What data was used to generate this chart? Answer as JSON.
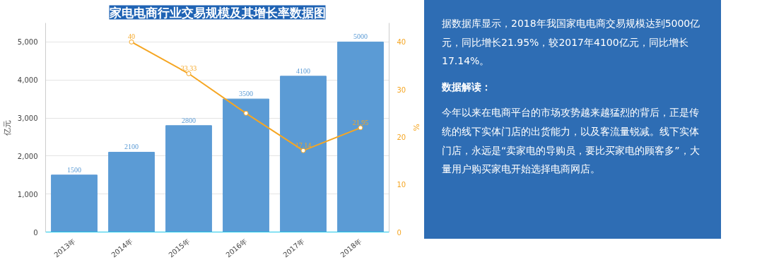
{
  "chart_data": [
    {
      "type": "bar",
      "title": "家电电商行业交易规模及其增长率数据图",
      "ylabel": "亿元",
      "y2label": "%",
      "categories": [
        "2013年",
        "2014年",
        "2015年",
        "2016年",
        "2017年",
        "2018年"
      ],
      "series": [
        {
          "color": "#5b9bd5",
          "values": [
            1500,
            2100,
            2800,
            3500,
            4100,
            5000
          ],
          "data_labels": true
        },
        {
          "type": "line",
          "axis": "y2",
          "color": "#f5a623",
          "values": [
            null,
            40,
            33.33,
            25,
            17.14,
            21.95
          ],
          "value_labels": [
            null,
            "40",
            "33.33",
            null,
            "17.14",
            "21.95"
          ],
          "marker": "circle"
        }
      ],
      "ylim": [
        0,
        5500
      ],
      "yticks": [
        0,
        {
          "value": 1000,
          "label": "1,000"
        },
        {
          "value": 2000,
          "label": "2,000"
        },
        {
          "value": 3000,
          "label": "3,000"
        },
        {
          "value": 4000,
          "label": "4,000"
        },
        {
          "value": 5000,
          "label": "5,000"
        }
      ],
      "y2lim": [
        0,
        44
      ],
      "y2ticks": [
        0,
        10,
        20,
        30,
        40
      ],
      "grid": "y"
    },
    {
      "type": "other",
      "annotations": [
        "据数据库显示，2018年我国家电电商交易规模达到5000亿元，同比增长21.95%，较2017年4100亿元，同比增长17.14%。",
        "数据解读：",
        "今年以来在电商平台的市场攻势越来越猛烈的背后，正是传统的线下实体门店的出货能力，以及客流量锐减。线下实体门店，永远是“卖家电的导购员，要比买家电的顾客多”，大量用户购买家电开始选择电商网店。"
      ]
    }
  ]
}
